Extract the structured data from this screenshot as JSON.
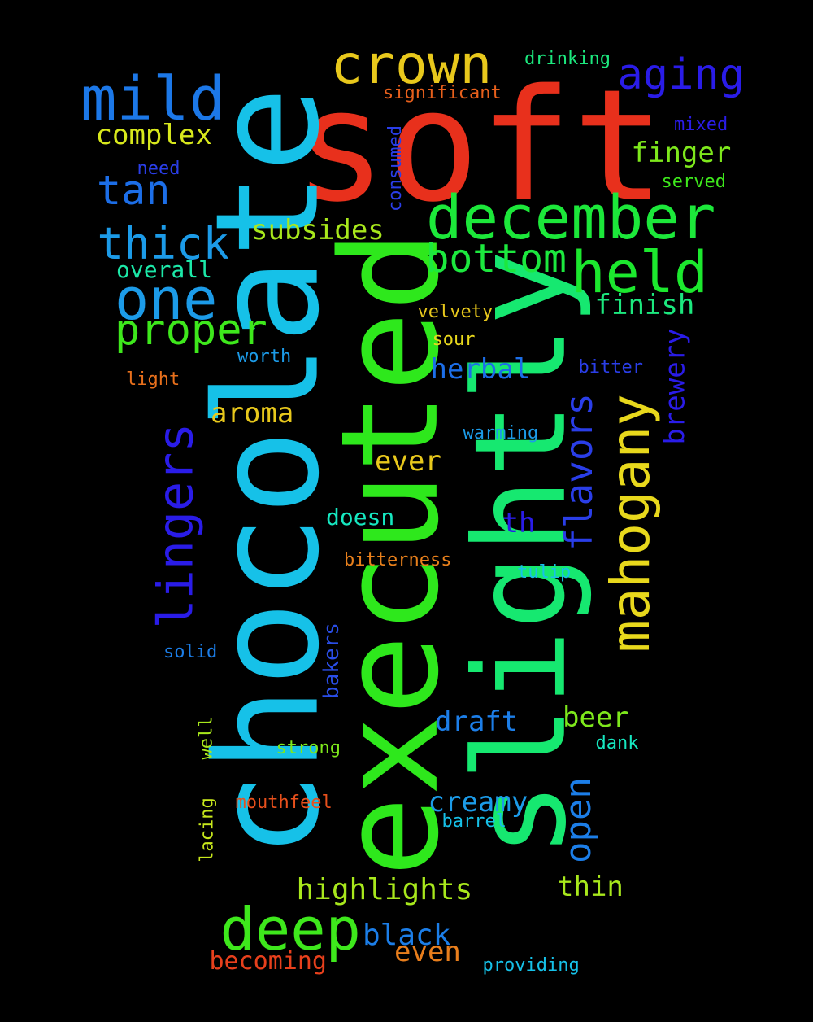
{
  "words": [
    {
      "text": "soft",
      "color": "#e8301c"
    },
    {
      "text": "chocolate",
      "color": "#16c1e8"
    },
    {
      "text": "executed",
      "color": "#2ee81c"
    },
    {
      "text": "slightly",
      "color": "#16e870"
    },
    {
      "text": "december",
      "color": "#1ce83a"
    },
    {
      "text": "mild",
      "color": "#1c78e8"
    },
    {
      "text": "crown",
      "color": "#e8c81c"
    },
    {
      "text": "aging",
      "color": "#2a1ce8"
    },
    {
      "text": "held",
      "color": "#1ce82e"
    },
    {
      "text": "one",
      "color": "#1c9be8"
    },
    {
      "text": "deep",
      "color": "#3ee81c"
    },
    {
      "text": "mahogany",
      "color": "#e8d81c"
    },
    {
      "text": "lingers",
      "color": "#2a1ce8"
    },
    {
      "text": "thick",
      "color": "#1c9be8"
    },
    {
      "text": "proper",
      "color": "#3ee81c"
    },
    {
      "text": "bottom",
      "color": "#1ce83e"
    },
    {
      "text": "tan",
      "color": "#1c6ee8"
    },
    {
      "text": "flavors",
      "color": "#2a3ee8"
    },
    {
      "text": "open",
      "color": "#1c7ee8"
    },
    {
      "text": "highlights",
      "color": "#a8e81c"
    },
    {
      "text": "complex",
      "color": "#d8e81c"
    },
    {
      "text": "finger",
      "color": "#7ee81c"
    },
    {
      "text": "subsides",
      "color": "#a8e81c"
    },
    {
      "text": "finish",
      "color": "#1ce87e"
    },
    {
      "text": "herbal",
      "color": "#1c6ee8"
    },
    {
      "text": "aroma",
      "color": "#e8c81c"
    },
    {
      "text": "brewery",
      "color": "#2a1ce8"
    },
    {
      "text": "ever",
      "color": "#e8c81c"
    },
    {
      "text": "thin",
      "color": "#a8e81c"
    },
    {
      "text": "black",
      "color": "#1c7ee8"
    },
    {
      "text": "draft",
      "color": "#1c7ee8"
    },
    {
      "text": "beer",
      "color": "#7ee81c"
    },
    {
      "text": "creamy",
      "color": "#1c9be8"
    },
    {
      "text": "even",
      "color": "#e87e1c"
    },
    {
      "text": "becoming",
      "color": "#e8401c"
    },
    {
      "text": "doesn",
      "color": "#16e8c1"
    },
    {
      "text": "th",
      "color": "#2a1ce8"
    },
    {
      "text": "overall",
      "color": "#1ce8a8"
    },
    {
      "text": "drinking",
      "color": "#1ce87e"
    },
    {
      "text": "significant",
      "color": "#e8601c"
    },
    {
      "text": "mixed",
      "color": "#2a1ce8"
    },
    {
      "text": "served",
      "color": "#3ee81c"
    },
    {
      "text": "need",
      "color": "#2a3ee8"
    },
    {
      "text": "consumed",
      "color": "#2a3ee8"
    },
    {
      "text": "velvety",
      "color": "#e8c81c"
    },
    {
      "text": "sour",
      "color": "#e8d81c"
    },
    {
      "text": "worth",
      "color": "#1c9be8"
    },
    {
      "text": "light",
      "color": "#e8701c"
    },
    {
      "text": "bitter",
      "color": "#2a3ee8"
    },
    {
      "text": "warming",
      "color": "#1c9be8"
    },
    {
      "text": "bitterness",
      "color": "#e8801c"
    },
    {
      "text": "tulip",
      "color": "#16c1e8"
    },
    {
      "text": "solid",
      "color": "#1c7ee8"
    },
    {
      "text": "bakers",
      "color": "#2a4ee8"
    },
    {
      "text": "dank",
      "color": "#16e8c1"
    },
    {
      "text": "strong",
      "color": "#7ee81c"
    },
    {
      "text": "well",
      "color": "#a8e81c"
    },
    {
      "text": "mouthfeel",
      "color": "#e8501c"
    },
    {
      "text": "barrel",
      "color": "#16c1e8"
    },
    {
      "text": "lacing",
      "color": "#c8e81c"
    },
    {
      "text": "providing",
      "color": "#16c1e8"
    }
  ]
}
